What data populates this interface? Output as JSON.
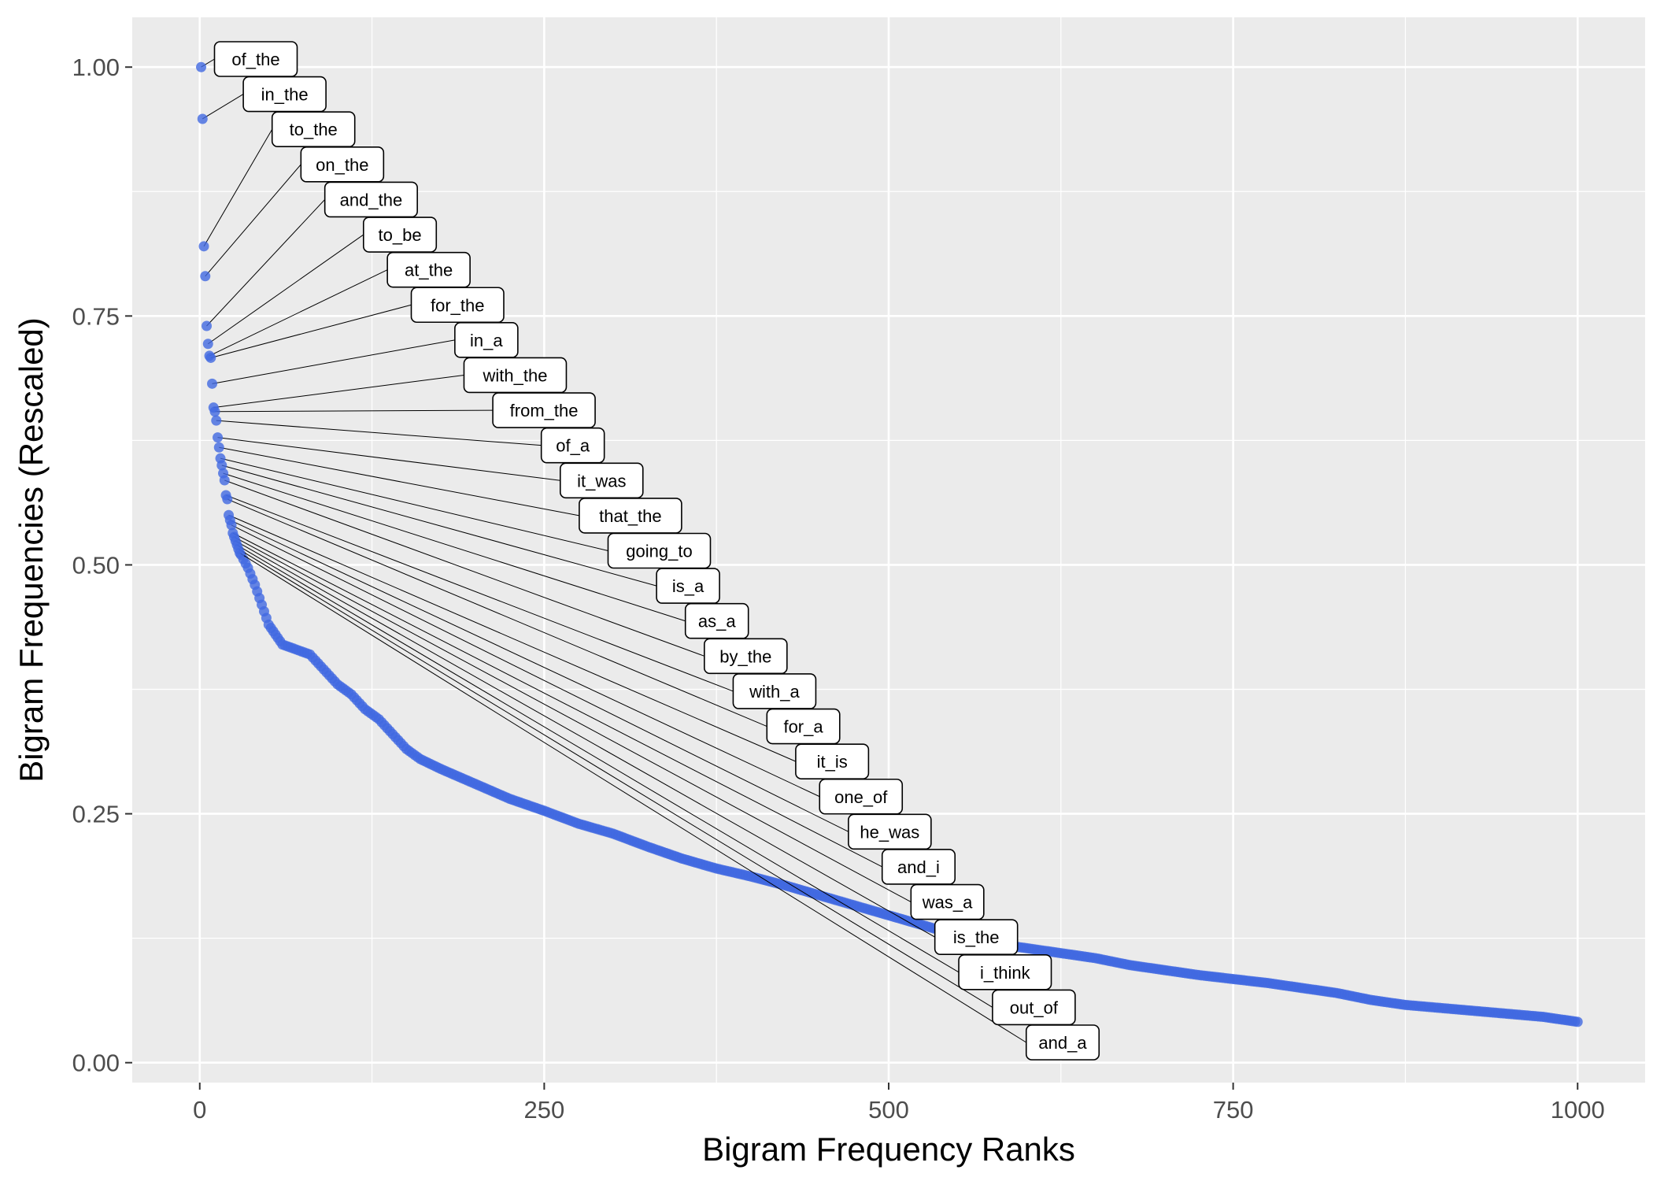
{
  "chart_data": {
    "type": "scatter",
    "xlabel": "Bigram Frequency Ranks",
    "ylabel": "Bigram Frequencies (Rescaled)",
    "xlim": [
      -49,
      1049
    ],
    "ylim": [
      -0.02,
      1.05
    ],
    "x_ticks": [
      0,
      250,
      500,
      750,
      1000
    ],
    "x_tick_labels": [
      "0",
      "250",
      "500",
      "750",
      "1000"
    ],
    "y_ticks": [
      0,
      0.25,
      0.5,
      0.75,
      1.0
    ],
    "y_tick_labels": [
      "0.00",
      "0.25",
      "0.50",
      "0.75",
      "1.00"
    ],
    "grid": true,
    "point_color": "#4169E1",
    "labeled_points": [
      {
        "label": "of_the",
        "x": 1,
        "y": 1.0
      },
      {
        "label": "in_the",
        "x": 2,
        "y": 0.948
      },
      {
        "label": "to_the",
        "x": 3,
        "y": 0.82
      },
      {
        "label": "on_the",
        "x": 4,
        "y": 0.79
      },
      {
        "label": "and_the",
        "x": 5,
        "y": 0.74
      },
      {
        "label": "to_be",
        "x": 6,
        "y": 0.722
      },
      {
        "label": "at_the",
        "x": 7,
        "y": 0.71
      },
      {
        "label": "for_the",
        "x": 8,
        "y": 0.708
      },
      {
        "label": "in_a",
        "x": 9,
        "y": 0.682
      },
      {
        "label": "with_the",
        "x": 10,
        "y": 0.658
      },
      {
        "label": "from_the",
        "x": 11,
        "y": 0.654
      },
      {
        "label": "of_a",
        "x": 12,
        "y": 0.645
      },
      {
        "label": "it_was",
        "x": 13,
        "y": 0.628
      },
      {
        "label": "that_the",
        "x": 14,
        "y": 0.618
      },
      {
        "label": "going_to",
        "x": 15,
        "y": 0.607
      },
      {
        "label": "is_a",
        "x": 16,
        "y": 0.6
      },
      {
        "label": "as_a",
        "x": 17,
        "y": 0.592
      },
      {
        "label": "by_the",
        "x": 18,
        "y": 0.585
      },
      {
        "label": "with_a",
        "x": 19,
        "y": 0.57
      },
      {
        "label": "for_a",
        "x": 20,
        "y": 0.566
      },
      {
        "label": "it_is",
        "x": 21,
        "y": 0.55
      },
      {
        "label": "one_of",
        "x": 22,
        "y": 0.545
      },
      {
        "label": "he_was",
        "x": 23,
        "y": 0.54
      },
      {
        "label": "and_i",
        "x": 24,
        "y": 0.532
      },
      {
        "label": "was_a",
        "x": 25,
        "y": 0.528
      },
      {
        "label": "is_the",
        "x": 26,
        "y": 0.524
      },
      {
        "label": "i_think",
        "x": 27,
        "y": 0.52
      },
      {
        "label": "out_of",
        "x": 28,
        "y": 0.516
      },
      {
        "label": "and_a",
        "x": 29,
        "y": 0.512
      }
    ],
    "curve_points": [
      [
        30,
        0.51
      ],
      [
        35,
        0.497
      ],
      [
        40,
        0.48
      ],
      [
        45,
        0.46
      ],
      [
        50,
        0.44
      ],
      [
        55,
        0.43
      ],
      [
        60,
        0.42
      ],
      [
        70,
        0.415
      ],
      [
        80,
        0.41
      ],
      [
        90,
        0.395
      ],
      [
        100,
        0.38
      ],
      [
        110,
        0.37
      ],
      [
        120,
        0.355
      ],
      [
        130,
        0.345
      ],
      [
        140,
        0.33
      ],
      [
        150,
        0.315
      ],
      [
        160,
        0.305
      ],
      [
        175,
        0.295
      ],
      [
        200,
        0.28
      ],
      [
        225,
        0.265
      ],
      [
        250,
        0.253
      ],
      [
        275,
        0.24
      ],
      [
        300,
        0.23
      ],
      [
        325,
        0.217
      ],
      [
        350,
        0.205
      ],
      [
        375,
        0.195
      ],
      [
        400,
        0.187
      ],
      [
        425,
        0.178
      ],
      [
        450,
        0.168
      ],
      [
        475,
        0.158
      ],
      [
        500,
        0.148
      ],
      [
        525,
        0.138
      ],
      [
        550,
        0.128
      ],
      [
        575,
        0.12
      ],
      [
        600,
        0.115
      ],
      [
        625,
        0.11
      ],
      [
        650,
        0.105
      ],
      [
        675,
        0.098
      ],
      [
        700,
        0.093
      ],
      [
        725,
        0.088
      ],
      [
        750,
        0.084
      ],
      [
        775,
        0.08
      ],
      [
        800,
        0.075
      ],
      [
        825,
        0.07
      ],
      [
        850,
        0.063
      ],
      [
        875,
        0.058
      ],
      [
        900,
        0.055
      ],
      [
        925,
        0.052
      ],
      [
        950,
        0.049
      ],
      [
        975,
        0.046
      ],
      [
        1000,
        0.041
      ]
    ]
  }
}
